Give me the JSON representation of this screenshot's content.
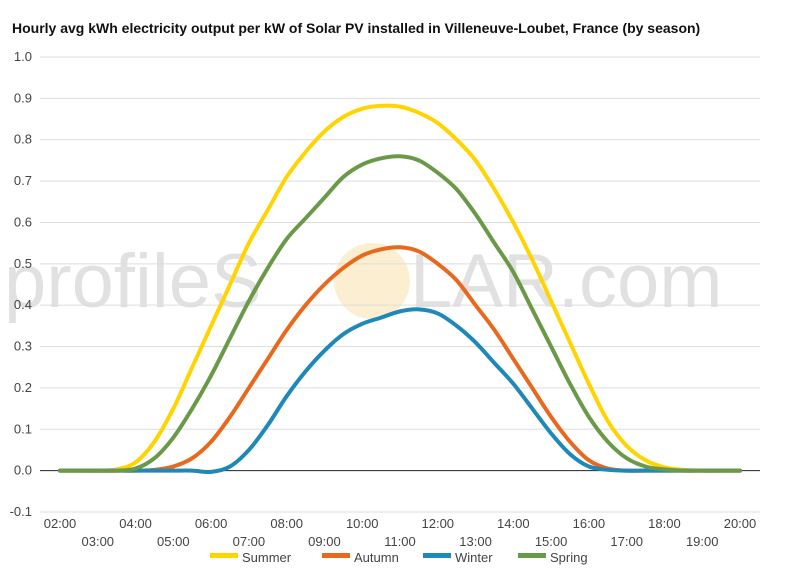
{
  "chart_data": {
    "type": "line",
    "title": "Hourly avg kWh electricity output per kW of Solar PV installed in Villeneuve-Loubet, France (by season)",
    "watermark": {
      "before": "profileS",
      "after": "LAR.com",
      "sun_color": "#f7d27a"
    },
    "ylim": [
      -0.1,
      1.0
    ],
    "y_ticks": [
      "1.0",
      "0.9",
      "0.8",
      "0.7",
      "0.6",
      "0.5",
      "0.4",
      "0.3",
      "0.2",
      "0.1",
      "0.0",
      "-0.1"
    ],
    "x_ticks": [
      "02:00",
      "03:00",
      "04:00",
      "05:00",
      "06:00",
      "07:00",
      "08:00",
      "09:00",
      "10:00",
      "11:00",
      "12:00",
      "13:00",
      "14:00",
      "15:00",
      "16:00",
      "17:00",
      "18:00",
      "19:00",
      "20:00"
    ],
    "x": [
      "02:00",
      "02:30",
      "03:00",
      "03:30",
      "04:00",
      "04:30",
      "05:00",
      "05:30",
      "06:00",
      "06:30",
      "07:00",
      "07:30",
      "08:00",
      "08:30",
      "09:00",
      "09:30",
      "10:00",
      "10:30",
      "11:00",
      "11:30",
      "12:00",
      "12:30",
      "13:00",
      "13:30",
      "14:00",
      "14:30",
      "15:00",
      "15:30",
      "16:00",
      "16:30",
      "17:00",
      "17:30",
      "18:00",
      "18:30",
      "19:00",
      "19:30",
      "20:00"
    ],
    "series": [
      {
        "name": "Summer",
        "color": "#ffd400",
        "values": [
          0,
          0,
          0,
          0.003,
          0.02,
          0.07,
          0.15,
          0.25,
          0.35,
          0.45,
          0.55,
          0.63,
          0.71,
          0.77,
          0.82,
          0.855,
          0.875,
          0.882,
          0.88,
          0.865,
          0.84,
          0.8,
          0.75,
          0.68,
          0.6,
          0.51,
          0.41,
          0.31,
          0.21,
          0.12,
          0.06,
          0.025,
          0.008,
          0.002,
          0,
          0,
          0
        ]
      },
      {
        "name": "Autumn",
        "color": "#e8691e",
        "values": [
          0,
          0,
          0,
          0,
          0,
          0.002,
          0.01,
          0.03,
          0.07,
          0.13,
          0.2,
          0.27,
          0.34,
          0.4,
          0.45,
          0.49,
          0.52,
          0.535,
          0.54,
          0.53,
          0.5,
          0.46,
          0.4,
          0.34,
          0.27,
          0.2,
          0.13,
          0.07,
          0.025,
          0.005,
          0,
          0,
          0,
          0,
          0,
          0,
          0
        ]
      },
      {
        "name": "Winter",
        "color": "#1e88b8",
        "values": [
          0,
          0,
          0,
          0,
          0,
          0,
          0,
          0,
          -0.003,
          0.01,
          0.05,
          0.11,
          0.18,
          0.24,
          0.29,
          0.33,
          0.355,
          0.37,
          0.385,
          0.39,
          0.38,
          0.35,
          0.31,
          0.26,
          0.21,
          0.15,
          0.09,
          0.04,
          0.01,
          0.002,
          0,
          0,
          0,
          0,
          0,
          0,
          0
        ]
      },
      {
        "name": "Spring",
        "color": "#6a9a48",
        "values": [
          0,
          0,
          0,
          0,
          0.005,
          0.03,
          0.08,
          0.15,
          0.23,
          0.32,
          0.41,
          0.49,
          0.56,
          0.61,
          0.66,
          0.71,
          0.74,
          0.755,
          0.76,
          0.75,
          0.72,
          0.68,
          0.62,
          0.55,
          0.48,
          0.39,
          0.3,
          0.21,
          0.13,
          0.07,
          0.03,
          0.01,
          0.003,
          0,
          0,
          0,
          0
        ]
      }
    ],
    "grid": true,
    "legend_position": "bottom"
  }
}
